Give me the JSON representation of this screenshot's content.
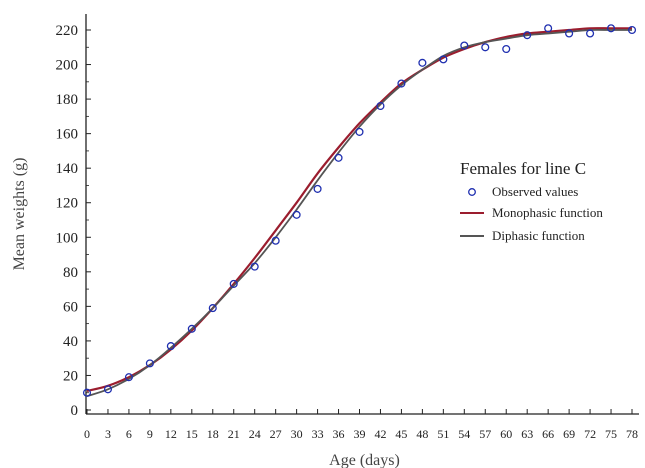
{
  "chart_data": {
    "type": "line",
    "xlabel": "Age (days)",
    "ylabel": "Mean weights (g)",
    "xlim": [
      0,
      78
    ],
    "ylim": [
      0,
      225
    ],
    "x_ticks": [
      "0",
      "3",
      "6",
      "9",
      "12",
      "15",
      "18",
      "21",
      "24",
      "27",
      "30",
      "33",
      "36",
      "39",
      "42",
      "45",
      "48",
      "51",
      "54",
      "57",
      "60",
      "63",
      "66",
      "69",
      "72",
      "75",
      "78"
    ],
    "y_ticks": [
      "0",
      "20",
      "40",
      "60",
      "80",
      "100",
      "120",
      "140",
      "160",
      "180",
      "200",
      "220"
    ],
    "grid": false,
    "legend": {
      "title": "Females for line C",
      "placement": "right-middle",
      "entries": [
        {
          "label": "Observed values",
          "marker": "circle",
          "color": "#1f2fb0"
        },
        {
          "label": "Monophasic function",
          "marker": "line",
          "color": "#9b1d2e"
        },
        {
          "label": "Diphasic function",
          "marker": "line",
          "color": "#555555"
        }
      ]
    },
    "series": [
      {
        "name": "Observed values",
        "kind": "scatter",
        "color": "#1f2fb0",
        "x": [
          0,
          3,
          6,
          9,
          12,
          15,
          18,
          21,
          24,
          27,
          30,
          33,
          36,
          39,
          42,
          45,
          48,
          51,
          54,
          57,
          60,
          63,
          66,
          69,
          72,
          75,
          78
        ],
        "y": [
          10,
          12,
          19,
          27,
          37,
          47,
          59,
          73,
          83,
          98,
          113,
          128,
          146,
          161,
          176,
          189,
          201,
          203,
          211,
          210,
          209,
          217,
          221,
          218,
          218,
          221,
          220
        ]
      },
      {
        "name": "Monophasic function",
        "kind": "line",
        "color": "#9b1d2e",
        "x": [
          0,
          3,
          6,
          9,
          12,
          15,
          18,
          21,
          24,
          27,
          30,
          33,
          36,
          39,
          42,
          45,
          48,
          51,
          54,
          57,
          60,
          63,
          66,
          69,
          72,
          75,
          78
        ],
        "y": [
          11,
          14,
          19,
          26,
          35,
          46,
          59,
          73,
          88,
          104,
          120,
          137,
          152,
          166,
          178,
          189,
          197,
          204,
          209,
          213,
          216,
          218,
          219,
          220,
          221,
          221,
          221
        ]
      },
      {
        "name": "Diphasic function",
        "kind": "line",
        "color": "#555555",
        "x": [
          0,
          3,
          6,
          9,
          12,
          15,
          18,
          21,
          24,
          27,
          30,
          33,
          36,
          39,
          42,
          45,
          48,
          51,
          54,
          57,
          60,
          63,
          66,
          69,
          72,
          75,
          78
        ],
        "y": [
          8,
          12,
          18,
          26,
          36,
          47,
          59,
          72,
          85,
          100,
          116,
          133,
          149,
          164,
          177,
          188,
          197,
          205,
          210,
          213,
          215,
          217,
          218,
          219,
          220,
          220,
          220
        ]
      }
    ]
  }
}
